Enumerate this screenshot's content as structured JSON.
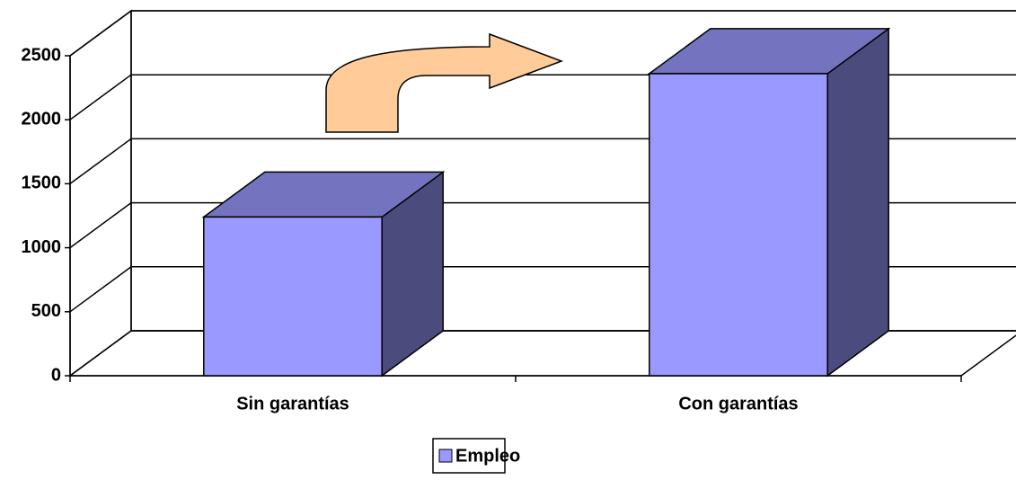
{
  "chart_data": {
    "type": "bar3d",
    "categories": [
      "Sin garantías",
      "Con garantías"
    ],
    "series": [
      {
        "name": "Empleo",
        "color": "#9999ff",
        "values": [
          1240,
          2360
        ]
      }
    ],
    "ylim": [
      0,
      2500
    ],
    "yticks": [
      0,
      500,
      1000,
      1500,
      2000,
      2500
    ],
    "grid": true,
    "legend": "bottom"
  }
}
